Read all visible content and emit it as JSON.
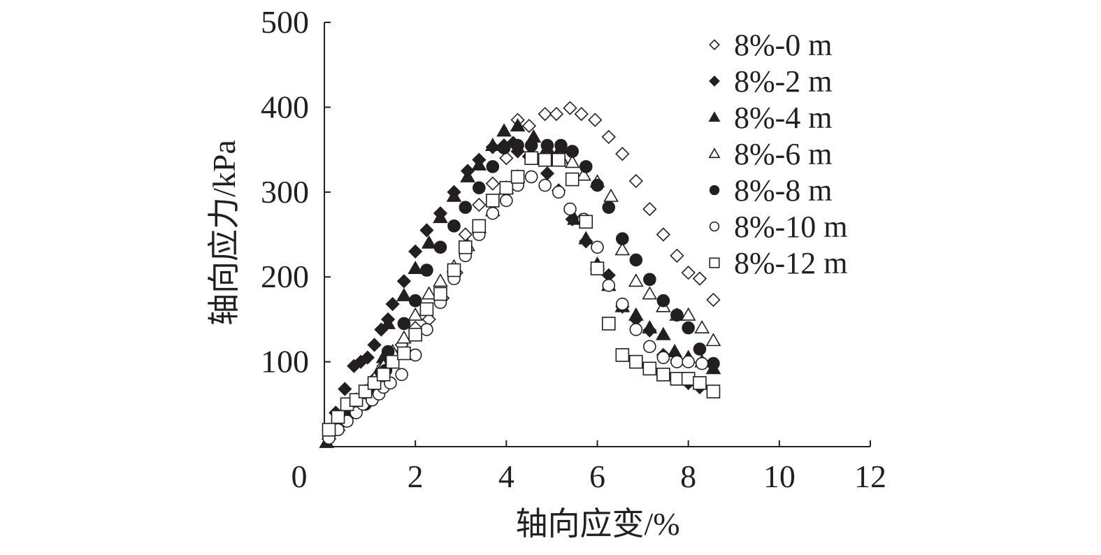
{
  "chart_data": {
    "type": "scatter",
    "title": "",
    "xlabel": "轴向应变/%",
    "ylabel": "轴向应力/kPa",
    "xlim": [
      0,
      12
    ],
    "ylim": [
      0,
      500
    ],
    "x_ticks": [
      "0",
      "2",
      "4",
      "6",
      "8",
      "10",
      "12"
    ],
    "y_ticks": [
      "100",
      "200",
      "300",
      "400",
      "500"
    ],
    "grid": false,
    "legend_position": "top-right",
    "series": [
      {
        "name": "8%-0 m",
        "marker": "diamond-open",
        "points": [
          [
            0.1,
            15
          ],
          [
            0.3,
            30
          ],
          [
            0.5,
            45
          ],
          [
            0.7,
            55
          ],
          [
            0.9,
            60
          ],
          [
            1.1,
            80
          ],
          [
            1.3,
            95
          ],
          [
            1.5,
            110
          ],
          [
            1.7,
            120
          ],
          [
            2.0,
            140
          ],
          [
            2.3,
            150
          ],
          [
            2.6,
            175
          ],
          [
            2.9,
            205
          ],
          [
            3.1,
            250
          ],
          [
            3.4,
            285
          ],
          [
            3.7,
            310
          ],
          [
            4.0,
            340
          ],
          [
            4.25,
            385
          ],
          [
            4.5,
            378
          ],
          [
            4.85,
            392
          ],
          [
            5.1,
            392
          ],
          [
            5.4,
            399
          ],
          [
            5.65,
            392
          ],
          [
            5.95,
            385
          ],
          [
            6.25,
            365
          ],
          [
            6.55,
            345
          ],
          [
            6.85,
            313
          ],
          [
            7.15,
            280
          ],
          [
            7.45,
            250
          ],
          [
            7.75,
            225
          ],
          [
            8.0,
            205
          ],
          [
            8.25,
            198
          ],
          [
            8.55,
            173
          ]
        ]
      },
      {
        "name": "8%-2 m",
        "marker": "diamond-filled",
        "points": [
          [
            0.1,
            20
          ],
          [
            0.25,
            40
          ],
          [
            0.45,
            68
          ],
          [
            0.65,
            95
          ],
          [
            0.8,
            100
          ],
          [
            0.95,
            105
          ],
          [
            1.1,
            120
          ],
          [
            1.25,
            138
          ],
          [
            1.4,
            150
          ],
          [
            1.5,
            168
          ],
          [
            1.75,
            195
          ],
          [
            2.0,
            230
          ],
          [
            2.25,
            255
          ],
          [
            2.55,
            275
          ],
          [
            2.85,
            300
          ],
          [
            3.15,
            325
          ],
          [
            3.4,
            338
          ],
          [
            3.7,
            353
          ],
          [
            3.95,
            355
          ],
          [
            4.15,
            358
          ],
          [
            4.25,
            348
          ],
          [
            4.5,
            342
          ],
          [
            4.9,
            322
          ],
          [
            5.15,
            302
          ],
          [
            5.45,
            268
          ],
          [
            5.75,
            242
          ],
          [
            6.0,
            212
          ],
          [
            6.25,
            202
          ],
          [
            6.55,
            165
          ],
          [
            6.85,
            150
          ],
          [
            7.15,
            137
          ],
          [
            7.45,
            108
          ],
          [
            7.75,
            102
          ],
          [
            8.0,
            75
          ],
          [
            8.25,
            70
          ],
          [
            8.55,
            65
          ]
        ]
      },
      {
        "name": "8%-4 m",
        "marker": "triangle-filled",
        "points": [
          [
            0.05,
            5
          ],
          [
            0.2,
            20
          ],
          [
            0.4,
            30
          ],
          [
            0.6,
            45
          ],
          [
            0.8,
            55
          ],
          [
            1.0,
            70
          ],
          [
            1.15,
            85
          ],
          [
            1.3,
            105
          ],
          [
            1.4,
            145
          ],
          [
            1.75,
            178
          ],
          [
            2.0,
            210
          ],
          [
            2.3,
            240
          ],
          [
            2.55,
            270
          ],
          [
            2.85,
            295
          ],
          [
            3.15,
            318
          ],
          [
            3.4,
            332
          ],
          [
            3.7,
            355
          ],
          [
            3.95,
            372
          ],
          [
            4.25,
            378
          ],
          [
            4.6,
            365
          ],
          [
            4.9,
            352
          ],
          [
            5.2,
            352
          ],
          [
            5.5,
            268
          ],
          [
            5.75,
            245
          ],
          [
            6.0,
            215
          ],
          [
            6.25,
            190
          ],
          [
            6.55,
            165
          ],
          [
            6.85,
            155
          ],
          [
            7.15,
            140
          ],
          [
            7.45,
            132
          ],
          [
            7.7,
            112
          ],
          [
            8.0,
            105
          ],
          [
            8.3,
            100
          ],
          [
            8.55,
            92
          ]
        ]
      },
      {
        "name": "8%-6 m",
        "marker": "triangle-open",
        "points": [
          [
            0.1,
            15
          ],
          [
            0.3,
            25
          ],
          [
            0.5,
            40
          ],
          [
            0.7,
            55
          ],
          [
            0.9,
            65
          ],
          [
            1.1,
            80
          ],
          [
            1.3,
            95
          ],
          [
            1.5,
            112
          ],
          [
            1.75,
            128
          ],
          [
            2.0,
            155
          ],
          [
            2.3,
            180
          ],
          [
            2.55,
            195
          ],
          [
            2.85,
            212
          ],
          [
            3.15,
            237
          ],
          [
            3.4,
            258
          ],
          [
            3.7,
            278
          ],
          [
            4.0,
            305
          ],
          [
            4.25,
            318
          ],
          [
            4.6,
            340
          ],
          [
            4.9,
            340
          ],
          [
            5.2,
            340
          ],
          [
            5.45,
            335
          ],
          [
            5.7,
            320
          ],
          [
            6.0,
            312
          ],
          [
            6.3,
            295
          ],
          [
            6.55,
            232
          ],
          [
            6.85,
            195
          ],
          [
            7.15,
            180
          ],
          [
            7.45,
            165
          ],
          [
            7.75,
            155
          ],
          [
            8.0,
            155
          ],
          [
            8.3,
            140
          ],
          [
            8.55,
            125
          ]
        ]
      },
      {
        "name": "8%-8 m",
        "marker": "circle-filled",
        "points": [
          [
            0.1,
            12
          ],
          [
            0.3,
            25
          ],
          [
            0.5,
            35
          ],
          [
            0.7,
            45
          ],
          [
            0.9,
            50
          ],
          [
            1.05,
            55
          ],
          [
            1.15,
            75
          ],
          [
            1.35,
            90
          ],
          [
            1.4,
            112
          ],
          [
            1.75,
            145
          ],
          [
            2.0,
            172
          ],
          [
            2.25,
            208
          ],
          [
            2.55,
            235
          ],
          [
            2.85,
            260
          ],
          [
            3.1,
            282
          ],
          [
            3.4,
            305
          ],
          [
            3.7,
            330
          ],
          [
            3.95,
            352
          ],
          [
            4.25,
            355
          ],
          [
            4.55,
            355
          ],
          [
            4.9,
            355
          ],
          [
            5.2,
            355
          ],
          [
            5.45,
            348
          ],
          [
            5.75,
            330
          ],
          [
            6.0,
            308
          ],
          [
            6.25,
            282
          ],
          [
            6.55,
            245
          ],
          [
            6.85,
            220
          ],
          [
            7.15,
            197
          ],
          [
            7.45,
            172
          ],
          [
            7.75,
            155
          ],
          [
            8.0,
            140
          ],
          [
            8.25,
            115
          ],
          [
            8.55,
            98
          ]
        ]
      },
      {
        "name": "8%-10 m",
        "marker": "circle-open",
        "points": [
          [
            0.1,
            10
          ],
          [
            0.3,
            20
          ],
          [
            0.5,
            30
          ],
          [
            0.7,
            40
          ],
          [
            0.85,
            50
          ],
          [
            1.05,
            55
          ],
          [
            1.2,
            62
          ],
          [
            1.3,
            70
          ],
          [
            1.45,
            75
          ],
          [
            1.7,
            85
          ],
          [
            2.0,
            108
          ],
          [
            2.25,
            138
          ],
          [
            2.55,
            170
          ],
          [
            2.85,
            198
          ],
          [
            3.1,
            225
          ],
          [
            3.4,
            250
          ],
          [
            3.7,
            275
          ],
          [
            4.0,
            290
          ],
          [
            4.25,
            308
          ],
          [
            4.55,
            318
          ],
          [
            4.85,
            308
          ],
          [
            5.15,
            300
          ],
          [
            5.4,
            280
          ],
          [
            5.7,
            268
          ],
          [
            6.0,
            235
          ],
          [
            6.25,
            190
          ],
          [
            6.55,
            168
          ],
          [
            6.85,
            138
          ],
          [
            7.15,
            118
          ],
          [
            7.45,
            105
          ],
          [
            7.75,
            100
          ],
          [
            8.0,
            100
          ],
          [
            8.3,
            98
          ],
          [
            8.55,
            65
          ]
        ]
      },
      {
        "name": "8%-12 m",
        "marker": "square-open",
        "points": [
          [
            0.1,
            20
          ],
          [
            0.3,
            35
          ],
          [
            0.5,
            50
          ],
          [
            0.7,
            55
          ],
          [
            0.9,
            65
          ],
          [
            1.1,
            75
          ],
          [
            1.3,
            85
          ],
          [
            1.5,
            100
          ],
          [
            1.75,
            110
          ],
          [
            2.0,
            132
          ],
          [
            2.25,
            162
          ],
          [
            2.55,
            180
          ],
          [
            2.85,
            208
          ],
          [
            3.1,
            235
          ],
          [
            3.4,
            260
          ],
          [
            3.7,
            290
          ],
          [
            4.0,
            305
          ],
          [
            4.25,
            318
          ],
          [
            4.55,
            340
          ],
          [
            4.85,
            338
          ],
          [
            5.15,
            338
          ],
          [
            5.45,
            315
          ],
          [
            5.75,
            265
          ],
          [
            6.0,
            210
          ],
          [
            6.25,
            145
          ],
          [
            6.55,
            108
          ],
          [
            6.85,
            100
          ],
          [
            7.15,
            92
          ],
          [
            7.45,
            85
          ],
          [
            7.75,
            80
          ],
          [
            8.0,
            80
          ],
          [
            8.25,
            75
          ],
          [
            8.55,
            65
          ]
        ]
      }
    ]
  }
}
